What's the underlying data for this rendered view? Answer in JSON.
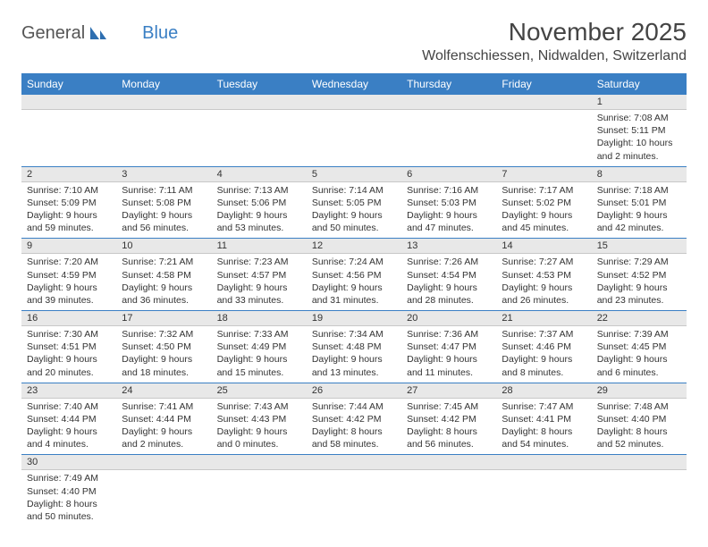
{
  "brand": {
    "name1": "General",
    "name2": "Blue"
  },
  "title": "November 2025",
  "location": "Wolfenschiessen, Nidwalden, Switzerland",
  "colors": {
    "header_bg": "#3a7fc4",
    "header_text": "#ffffff",
    "daynum_bg": "#e8e8e8",
    "divider": "#3a7fc4",
    "text": "#333333",
    "title_text": "#444444"
  },
  "fonts": {
    "title_size": 28,
    "location_size": 16,
    "th_size": 12,
    "cell_size": 10.5
  },
  "weekdays": [
    "Sunday",
    "Monday",
    "Tuesday",
    "Wednesday",
    "Thursday",
    "Friday",
    "Saturday"
  ],
  "weeks": [
    [
      null,
      null,
      null,
      null,
      null,
      null,
      {
        "n": "1",
        "sr": "Sunrise: 7:08 AM",
        "ss": "Sunset: 5:11 PM",
        "d1": "Daylight: 10 hours",
        "d2": "and 2 minutes."
      }
    ],
    [
      {
        "n": "2",
        "sr": "Sunrise: 7:10 AM",
        "ss": "Sunset: 5:09 PM",
        "d1": "Daylight: 9 hours",
        "d2": "and 59 minutes."
      },
      {
        "n": "3",
        "sr": "Sunrise: 7:11 AM",
        "ss": "Sunset: 5:08 PM",
        "d1": "Daylight: 9 hours",
        "d2": "and 56 minutes."
      },
      {
        "n": "4",
        "sr": "Sunrise: 7:13 AM",
        "ss": "Sunset: 5:06 PM",
        "d1": "Daylight: 9 hours",
        "d2": "and 53 minutes."
      },
      {
        "n": "5",
        "sr": "Sunrise: 7:14 AM",
        "ss": "Sunset: 5:05 PM",
        "d1": "Daylight: 9 hours",
        "d2": "and 50 minutes."
      },
      {
        "n": "6",
        "sr": "Sunrise: 7:16 AM",
        "ss": "Sunset: 5:03 PM",
        "d1": "Daylight: 9 hours",
        "d2": "and 47 minutes."
      },
      {
        "n": "7",
        "sr": "Sunrise: 7:17 AM",
        "ss": "Sunset: 5:02 PM",
        "d1": "Daylight: 9 hours",
        "d2": "and 45 minutes."
      },
      {
        "n": "8",
        "sr": "Sunrise: 7:18 AM",
        "ss": "Sunset: 5:01 PM",
        "d1": "Daylight: 9 hours",
        "d2": "and 42 minutes."
      }
    ],
    [
      {
        "n": "9",
        "sr": "Sunrise: 7:20 AM",
        "ss": "Sunset: 4:59 PM",
        "d1": "Daylight: 9 hours",
        "d2": "and 39 minutes."
      },
      {
        "n": "10",
        "sr": "Sunrise: 7:21 AM",
        "ss": "Sunset: 4:58 PM",
        "d1": "Daylight: 9 hours",
        "d2": "and 36 minutes."
      },
      {
        "n": "11",
        "sr": "Sunrise: 7:23 AM",
        "ss": "Sunset: 4:57 PM",
        "d1": "Daylight: 9 hours",
        "d2": "and 33 minutes."
      },
      {
        "n": "12",
        "sr": "Sunrise: 7:24 AM",
        "ss": "Sunset: 4:56 PM",
        "d1": "Daylight: 9 hours",
        "d2": "and 31 minutes."
      },
      {
        "n": "13",
        "sr": "Sunrise: 7:26 AM",
        "ss": "Sunset: 4:54 PM",
        "d1": "Daylight: 9 hours",
        "d2": "and 28 minutes."
      },
      {
        "n": "14",
        "sr": "Sunrise: 7:27 AM",
        "ss": "Sunset: 4:53 PM",
        "d1": "Daylight: 9 hours",
        "d2": "and 26 minutes."
      },
      {
        "n": "15",
        "sr": "Sunrise: 7:29 AM",
        "ss": "Sunset: 4:52 PM",
        "d1": "Daylight: 9 hours",
        "d2": "and 23 minutes."
      }
    ],
    [
      {
        "n": "16",
        "sr": "Sunrise: 7:30 AM",
        "ss": "Sunset: 4:51 PM",
        "d1": "Daylight: 9 hours",
        "d2": "and 20 minutes."
      },
      {
        "n": "17",
        "sr": "Sunrise: 7:32 AM",
        "ss": "Sunset: 4:50 PM",
        "d1": "Daylight: 9 hours",
        "d2": "and 18 minutes."
      },
      {
        "n": "18",
        "sr": "Sunrise: 7:33 AM",
        "ss": "Sunset: 4:49 PM",
        "d1": "Daylight: 9 hours",
        "d2": "and 15 minutes."
      },
      {
        "n": "19",
        "sr": "Sunrise: 7:34 AM",
        "ss": "Sunset: 4:48 PM",
        "d1": "Daylight: 9 hours",
        "d2": "and 13 minutes."
      },
      {
        "n": "20",
        "sr": "Sunrise: 7:36 AM",
        "ss": "Sunset: 4:47 PM",
        "d1": "Daylight: 9 hours",
        "d2": "and 11 minutes."
      },
      {
        "n": "21",
        "sr": "Sunrise: 7:37 AM",
        "ss": "Sunset: 4:46 PM",
        "d1": "Daylight: 9 hours",
        "d2": "and 8 minutes."
      },
      {
        "n": "22",
        "sr": "Sunrise: 7:39 AM",
        "ss": "Sunset: 4:45 PM",
        "d1": "Daylight: 9 hours",
        "d2": "and 6 minutes."
      }
    ],
    [
      {
        "n": "23",
        "sr": "Sunrise: 7:40 AM",
        "ss": "Sunset: 4:44 PM",
        "d1": "Daylight: 9 hours",
        "d2": "and 4 minutes."
      },
      {
        "n": "24",
        "sr": "Sunrise: 7:41 AM",
        "ss": "Sunset: 4:44 PM",
        "d1": "Daylight: 9 hours",
        "d2": "and 2 minutes."
      },
      {
        "n": "25",
        "sr": "Sunrise: 7:43 AM",
        "ss": "Sunset: 4:43 PM",
        "d1": "Daylight: 9 hours",
        "d2": "and 0 minutes."
      },
      {
        "n": "26",
        "sr": "Sunrise: 7:44 AM",
        "ss": "Sunset: 4:42 PM",
        "d1": "Daylight: 8 hours",
        "d2": "and 58 minutes."
      },
      {
        "n": "27",
        "sr": "Sunrise: 7:45 AM",
        "ss": "Sunset: 4:42 PM",
        "d1": "Daylight: 8 hours",
        "d2": "and 56 minutes."
      },
      {
        "n": "28",
        "sr": "Sunrise: 7:47 AM",
        "ss": "Sunset: 4:41 PM",
        "d1": "Daylight: 8 hours",
        "d2": "and 54 minutes."
      },
      {
        "n": "29",
        "sr": "Sunrise: 7:48 AM",
        "ss": "Sunset: 4:40 PM",
        "d1": "Daylight: 8 hours",
        "d2": "and 52 minutes."
      }
    ],
    [
      {
        "n": "30",
        "sr": "Sunrise: 7:49 AM",
        "ss": "Sunset: 4:40 PM",
        "d1": "Daylight: 8 hours",
        "d2": "and 50 minutes."
      },
      null,
      null,
      null,
      null,
      null,
      null
    ]
  ]
}
